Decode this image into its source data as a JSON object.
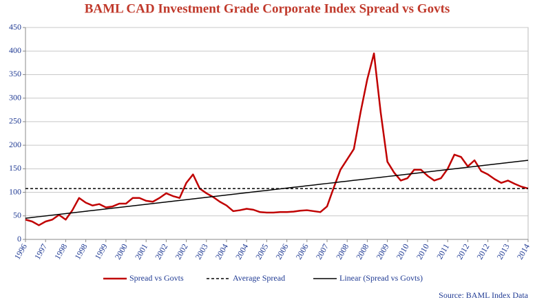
{
  "chart_data": {
    "type": "line",
    "title": "BAML CAD Investment Grade Corporate Index Spread vs Govts",
    "source": "Source: BAML Index Data",
    "categories": [
      "1996",
      null,
      null,
      "1997",
      null,
      null,
      "1998",
      null,
      null,
      "1998",
      null,
      null,
      "1999",
      null,
      null,
      "2000",
      null,
      null,
      "2001",
      null,
      null,
      "2002",
      null,
      null,
      "2002",
      null,
      null,
      "2003",
      null,
      null,
      "2004",
      null,
      null,
      "2004",
      null,
      null,
      "2005",
      null,
      null,
      "2006",
      null,
      null,
      "2006",
      null,
      null,
      "2007",
      null,
      null,
      "2008",
      null,
      null,
      "2008",
      null,
      null,
      "2009",
      null,
      null,
      "2010",
      null,
      null,
      "2010",
      null,
      null,
      "2011",
      null,
      null,
      "2012",
      null,
      null,
      "2012",
      null,
      null,
      "2013",
      null,
      null,
      "2014"
    ],
    "series": [
      {
        "name": "Spread vs Govts",
        "color": "#c00000",
        "linestyle": "solid",
        "width": 2.5,
        "values": [
          42,
          38,
          30,
          38,
          42,
          52,
          42,
          62,
          88,
          78,
          72,
          75,
          68,
          70,
          76,
          76,
          88,
          88,
          82,
          80,
          88,
          98,
          92,
          88,
          120,
          138,
          108,
          98,
          90,
          80,
          72,
          60,
          62,
          65,
          63,
          58,
          57,
          57,
          58,
          58,
          59,
          61,
          62,
          60,
          58,
          70,
          110,
          148,
          170,
          192,
          270,
          340,
          395,
          270,
          165,
          142,
          125,
          130,
          148,
          148,
          135,
          125,
          130,
          150,
          180,
          175,
          155,
          168,
          145,
          138,
          128,
          120,
          125,
          118,
          112,
          108
        ]
      },
      {
        "name": "Average Spread",
        "color": "#000000",
        "linestyle": "dashed",
        "width": 1.5,
        "values": [
          108,
          108,
          108,
          108,
          108,
          108,
          108,
          108,
          108,
          108,
          108,
          108,
          108,
          108,
          108,
          108,
          108,
          108,
          108,
          108,
          108,
          108,
          108,
          108,
          108,
          108,
          108,
          108,
          108,
          108,
          108,
          108,
          108,
          108,
          108,
          108,
          108,
          108,
          108,
          108,
          108,
          108,
          108,
          108,
          108,
          108,
          108,
          108,
          108,
          108,
          108,
          108,
          108,
          108,
          108,
          108,
          108,
          108,
          108,
          108,
          108,
          108,
          108,
          108,
          108,
          108,
          108,
          108,
          108,
          108,
          108,
          108,
          108,
          108,
          108,
          108
        ]
      },
      {
        "name": "Linear (Spread vs Govts)",
        "color": "#000000",
        "linestyle": "solid",
        "width": 1.5,
        "values": [
          45,
          46.6,
          48.3,
          49.9,
          51.6,
          53.2,
          54.8,
          56.5,
          58.1,
          59.8,
          61.4,
          63,
          64.7,
          66.3,
          68,
          69.6,
          71.2,
          72.9,
          74.5,
          76.2,
          77.8,
          79.4,
          81.1,
          82.7,
          84.4,
          86,
          87.6,
          89.3,
          90.9,
          92.6,
          94.2,
          95.8,
          97.5,
          99.1,
          100.8,
          102.4,
          104,
          105.7,
          107.3,
          109,
          110.6,
          112.2,
          113.9,
          115.5,
          117.2,
          118.8,
          120.4,
          122.1,
          123.7,
          125.4,
          127,
          128.6,
          130.3,
          131.9,
          133.6,
          135.2,
          136.8,
          138.5,
          140.1,
          141.8,
          143.4,
          145,
          146.7,
          148.3,
          150,
          151.6,
          153.2,
          154.9,
          156.5,
          158.2,
          159.8,
          161.4,
          163.1,
          164.7,
          166.4,
          168
        ]
      }
    ],
    "ylim": [
      0,
      450
    ],
    "yticks": [
      0,
      50,
      100,
      150,
      200,
      250,
      300,
      350,
      400,
      450
    ],
    "grid": true,
    "legend": "bottom"
  }
}
